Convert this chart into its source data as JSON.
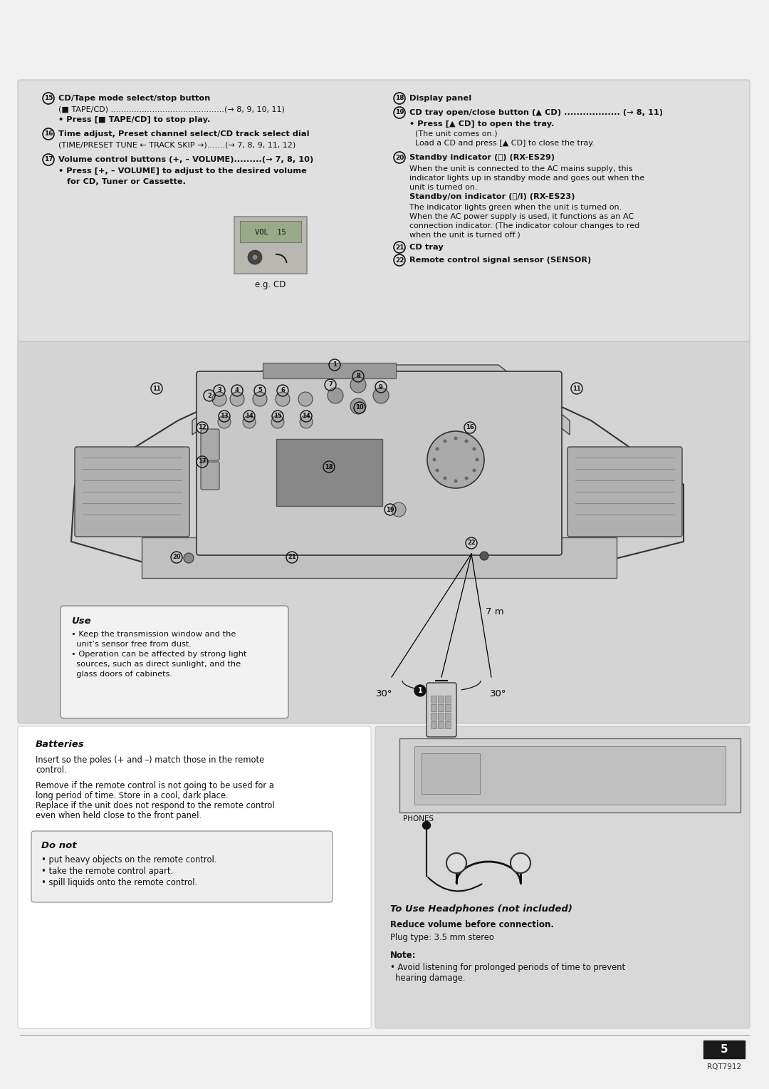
{
  "page_bg": "#f0f0f0",
  "top_box_bg": "#e0e0e0",
  "mid_box_bg": "#d4d4d4",
  "bot_left_bg": "#ffffff",
  "bot_right_bg": "#d8d8d8",
  "left_items": [
    {
      "num": "15",
      "head": "CD/Tape mode select/stop button",
      "head2": null,
      "body": [
        [
          "normal",
          "(■ TAPE/CD) ............................................(→ 8, 9, 10, 11)"
        ],
        [
          "bold",
          "• Press [■ TAPE/CD] to stop play."
        ]
      ]
    },
    {
      "num": "16",
      "head": "Time adjust, Preset channel select/CD track select dial",
      "head2": null,
      "body": [
        [
          "normal",
          "(TIME/PRESET TUNE ← TRACK SKIP →).......(→ 7, 8, 9, 11, 12)"
        ]
      ]
    },
    {
      "num": "17",
      "head": "Volume control buttons (+, – VOLUME).........(→ 7, 8, 10)",
      "head2": null,
      "body": [
        [
          "bold",
          "• Press [+, – VOLUME] to adjust to the desired volume"
        ],
        [
          "bold",
          "   for CD, Tuner or Cassette."
        ]
      ]
    }
  ],
  "right_items": [
    {
      "num": "18",
      "head": "Display panel",
      "body": []
    },
    {
      "num": "19",
      "head": "CD tray open/close button (▲ CD) .................. (→ 8, 11)",
      "body": [
        [
          "bold",
          "• Press [▲ CD] to open the tray."
        ],
        [
          "normal",
          "(The unit comes on.)"
        ],
        [
          "normal",
          "Load a CD and press [▲ CD] to close the tray."
        ]
      ]
    },
    {
      "num": "20",
      "head": "Standby indicator (⏻) (RX-ES29)",
      "body": [
        [
          "normal",
          "When the unit is connected to the AC mains supply, this"
        ],
        [
          "normal",
          "indicator lights up in standby mode and goes out when the"
        ],
        [
          "normal",
          "unit is turned on."
        ],
        [
          "bold",
          "Standby/on indicator (⏻/I) (RX-ES23)"
        ],
        [
          "normal",
          "The indicator lights green when the unit is turned on."
        ],
        [
          "normal",
          "When the AC power supply is used, it functions as an AC"
        ],
        [
          "normal",
          "connection indicator. (The indicator colour changes to red"
        ],
        [
          "normal",
          "when the unit is turned off.)"
        ]
      ]
    },
    {
      "num": "21",
      "head": "CD tray",
      "body": []
    },
    {
      "num": "22",
      "head": "Remote control signal sensor (SENSOR)",
      "body": []
    }
  ],
  "use_title": "Use",
  "use_lines": [
    "• Keep the transmission window and the",
    "  unit’s sensor free from dust.",
    "• Operation can be affected by strong light",
    "  sources, such as direct sunlight, and the",
    "  glass doors of cabinets."
  ],
  "batteries_title": "Batteries",
  "batteries_lines": [
    "Insert so the poles (+ and –) match those in the remote",
    "control.",
    "",
    "Remove if the remote control is not going to be used for a",
    "long period of time. Store in a cool, dark place.",
    "Replace if the unit does not respond to the remote control",
    "even when held close to the front panel."
  ],
  "do_not_title": "Do not",
  "do_not_lines": [
    "• put heavy objects on the remote control.",
    "• take the remote control apart.",
    "• spill liquids onto the remote control."
  ],
  "hp_title": "To Use Headphones (not included)",
  "hp_bold": "Reduce volume before connection.",
  "hp_lines": [
    "Plug type: 3.5 mm stereo"
  ],
  "note_title": "Note:",
  "note_lines": [
    "• Avoid listening for prolonged periods of time to prevent",
    "  hearing damage."
  ],
  "dist_label": "7 m",
  "angle_l": "30°",
  "angle_r": "30°",
  "eg_cd": "e.g. CD",
  "page_num": "5",
  "model": "RQT7912"
}
